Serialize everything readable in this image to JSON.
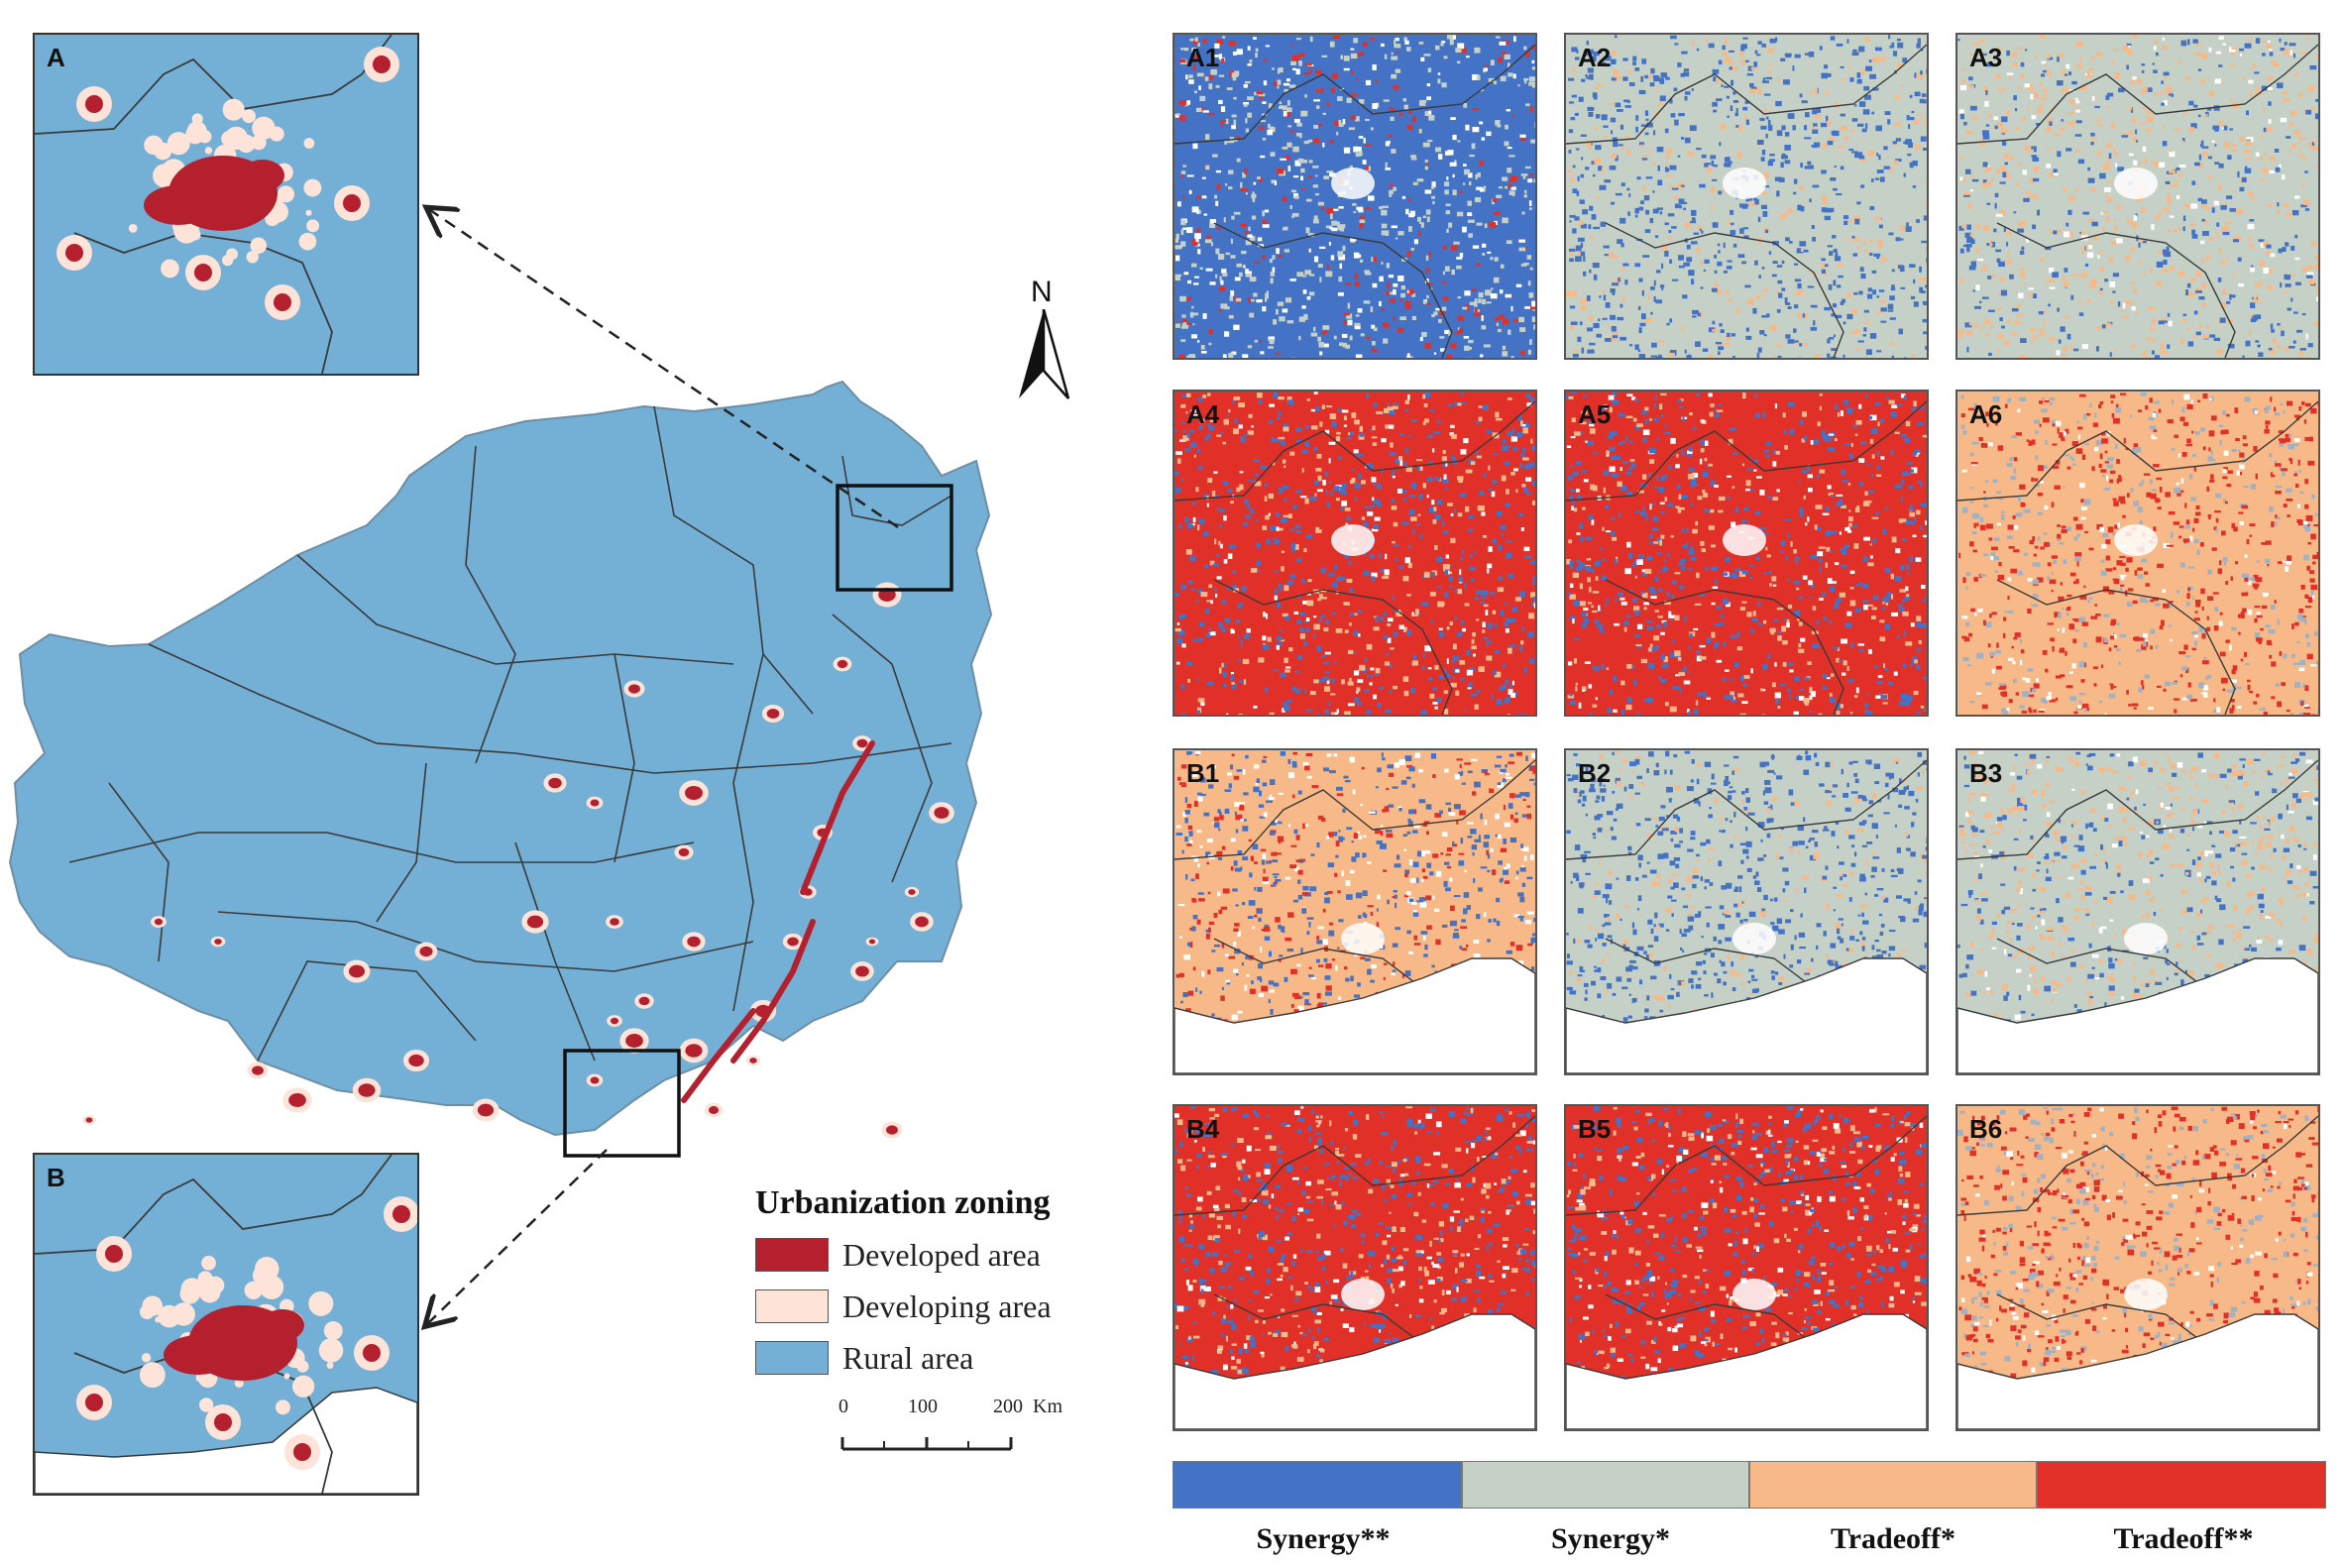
{
  "inset_a": {
    "label": "A"
  },
  "inset_b": {
    "label": "B"
  },
  "north": {
    "label": "N"
  },
  "legend": {
    "title": "Urbanization zoning",
    "items": [
      {
        "label": "Developed area",
        "color": "#b5202e"
      },
      {
        "label": "Developing area",
        "color": "#fde3d8"
      },
      {
        "label": "Rural area",
        "color": "#74b0d6"
      }
    ]
  },
  "scale_bar": {
    "ticks": [
      "0",
      "100",
      "200"
    ],
    "unit": "Km"
  },
  "colors": {
    "rural": "#74b0d6",
    "developed": "#b5202e",
    "developing": "#fde3d8",
    "synergy_strong": "#4472c4",
    "synergy_weak": "#c5d1c6",
    "tradeoff_weak": "#f7b988",
    "tradeoff_strong": "#e03028",
    "boundary": "#3a3a3a"
  },
  "panels": [
    {
      "label": "A1",
      "scheme": "synergy_strong"
    },
    {
      "label": "A2",
      "scheme": "synergy_weak"
    },
    {
      "label": "A3",
      "scheme": "mixed_weak"
    },
    {
      "label": "A4",
      "scheme": "tradeoff_strong_mix"
    },
    {
      "label": "A5",
      "scheme": "tradeoff_strong_mix"
    },
    {
      "label": "A6",
      "scheme": "tradeoff_weak"
    },
    {
      "label": "B1",
      "scheme": "mixed_blue"
    },
    {
      "label": "B2",
      "scheme": "synergy_weak"
    },
    {
      "label": "B3",
      "scheme": "mixed_weak"
    },
    {
      "label": "B4",
      "scheme": "tradeoff_strong_mix"
    },
    {
      "label": "B5",
      "scheme": "tradeoff_strong_mix"
    },
    {
      "label": "B6",
      "scheme": "tradeoff_weak"
    }
  ],
  "color_bar": {
    "labels": [
      "Synergy**",
      "Synergy*",
      "Tradeoff*",
      "Tradeoff**"
    ],
    "colors": [
      "#4472c4",
      "#c5d1c6",
      "#f7b988",
      "#e03028"
    ]
  }
}
